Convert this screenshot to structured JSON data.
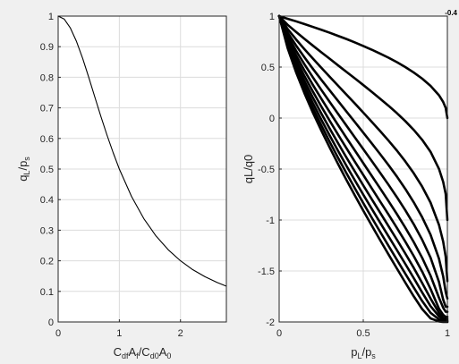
{
  "figure": {
    "background": "#f0f0f0",
    "axes_background": "#ffffff",
    "grid_color": "#dcdcdc",
    "line_color": "#000000"
  },
  "chart_data": [
    {
      "type": "line",
      "title": "",
      "xlabel": {
        "text": "CdfAf/Cd0A0",
        "parts": [
          [
            "C",
            ""
          ],
          [
            "df",
            "sub"
          ],
          [
            "A",
            ""
          ],
          [
            "f",
            "sub"
          ],
          [
            "/C",
            ""
          ],
          [
            "d0",
            "sub"
          ],
          [
            "A",
            ""
          ],
          [
            "0",
            "sub"
          ]
        ]
      },
      "ylabel": {
        "text": "qL/ps",
        "parts": [
          [
            "q",
            ""
          ],
          [
            "L",
            "sub"
          ],
          [
            "/p",
            ""
          ],
          [
            "s",
            "sub"
          ]
        ]
      },
      "xlim": [
        0,
        2.75
      ],
      "ylim": [
        0,
        1
      ],
      "xticks": [
        0,
        1,
        2
      ],
      "xtick_labels": [
        "0",
        "1",
        "2"
      ],
      "yticks": [
        0,
        0.1,
        0.2,
        0.3,
        0.4,
        0.5,
        0.6,
        0.7,
        0.8,
        0.9,
        1
      ],
      "ytick_labels": [
        "0",
        "0.1",
        "0.2",
        "0.3",
        "0.4",
        "0.5",
        "0.6",
        "0.7",
        "0.8",
        "0.9",
        "1"
      ],
      "grid": true,
      "series": [
        {
          "x": [
            0,
            0.1,
            0.2,
            0.3,
            0.4,
            0.5,
            0.6,
            0.7,
            0.8,
            0.9,
            1.0,
            1.2,
            1.4,
            1.6,
            1.8,
            2.0,
            2.2,
            2.4,
            2.6,
            2.75
          ],
          "y": [
            1.0,
            0.99,
            0.961,
            0.917,
            0.862,
            0.8,
            0.735,
            0.671,
            0.61,
            0.553,
            0.5,
            0.41,
            0.338,
            0.281,
            0.236,
            0.2,
            0.171,
            0.148,
            0.129,
            0.117
          ]
        }
      ]
    },
    {
      "type": "line",
      "title": "",
      "xlabel": {
        "text": "pL/ps",
        "parts": [
          [
            "p",
            ""
          ],
          [
            "L",
            "sub"
          ],
          [
            "/p",
            ""
          ],
          [
            "s",
            "sub"
          ]
        ]
      },
      "ylabel": {
        "text": "qL/q0",
        "parts": [
          [
            "qL/q0",
            ""
          ]
        ]
      },
      "xlim": [
        0,
        1
      ],
      "ylim": [
        -2,
        1
      ],
      "xticks": [
        0,
        0.5,
        1
      ],
      "xtick_labels": [
        "0",
        "0.5",
        "1"
      ],
      "yticks": [
        -2,
        -1.5,
        -1,
        -0.5,
        0,
        0.5,
        1
      ],
      "ytick_labels": [
        "-2",
        "-1.5",
        "-1",
        "-0.5",
        "0",
        "0.5",
        "1"
      ],
      "grid": true,
      "corner_label": "-0.4",
      "family": {
        "x": [
          0,
          0.05,
          0.1,
          0.15,
          0.2,
          0.25,
          0.3,
          0.35,
          0.4,
          0.45,
          0.5,
          0.55,
          0.6,
          0.65,
          0.7,
          0.75,
          0.8,
          0.85,
          0.9,
          0.95,
          0.975,
          0.99,
          1.0
        ],
        "curve_count": 11,
        "series": [
          {
            "y": [
              1.0,
              0.974,
              0.949,
              0.922,
              0.894,
              0.866,
              0.837,
              0.806,
              0.775,
              0.742,
              0.707,
              0.671,
              0.632,
              0.592,
              0.548,
              0.5,
              0.447,
              0.387,
              0.316,
              0.224,
              0.158,
              0.1,
              0.0
            ]
          },
          {
            "y": [
              1.0,
              0.915,
              0.845,
              0.777,
              0.711,
              0.646,
              0.582,
              0.517,
              0.453,
              0.389,
              0.324,
              0.258,
              0.19,
              0.121,
              0.048,
              -0.03,
              -0.116,
              -0.213,
              -0.331,
              -0.498,
              -0.625,
              -0.744,
              -1.0
            ]
          },
          {
            "y": [
              1.0,
              0.874,
              0.772,
              0.676,
              0.584,
              0.494,
              0.406,
              0.318,
              0.23,
              0.143,
              0.054,
              -0.036,
              -0.127,
              -0.221,
              -0.319,
              -0.425,
              -0.541,
              -0.672,
              -0.829,
              -1.047,
              -1.211,
              -1.359,
              -1.6
            ]
          },
          {
            "y": [
              1.0,
              0.84,
              0.713,
              0.596,
              0.484,
              0.377,
              0.272,
              0.168,
              0.064,
              -0.039,
              -0.143,
              -0.247,
              -0.353,
              -0.461,
              -0.574,
              -0.695,
              -0.826,
              -0.972,
              -1.144,
              -1.379,
              -1.552,
              -1.705,
              -1.77
            ]
          },
          {
            "y": [
              1.0,
              0.81,
              0.662,
              0.528,
              0.401,
              0.278,
              0.159,
              0.042,
              -0.074,
              -0.19,
              -0.305,
              -0.42,
              -0.536,
              -0.654,
              -0.776,
              -0.904,
              -1.041,
              -1.193,
              -1.369,
              -1.607,
              -1.78,
              -1.85,
              -1.85
            ]
          },
          {
            "y": [
              1.0,
              0.784,
              0.617,
              0.467,
              0.326,
              0.191,
              0.06,
              -0.068,
              -0.194,
              -0.318,
              -0.442,
              -0.566,
              -0.689,
              -0.814,
              -0.942,
              -1.075,
              -1.216,
              -1.37,
              -1.546,
              -1.762,
              -1.86,
              -1.9,
              -1.9
            ]
          },
          {
            "y": [
              1.0,
              0.761,
              0.577,
              0.413,
              0.261,
              0.115,
              -0.025,
              -0.162,
              -0.296,
              -0.428,
              -0.558,
              -0.688,
              -0.817,
              -0.946,
              -1.077,
              -1.212,
              -1.353,
              -1.505,
              -1.676,
              -1.869,
              -1.93,
              -1.95,
              -1.95
            ]
          },
          {
            "y": [
              1.0,
              0.74,
              0.541,
              0.365,
              0.202,
              0.047,
              -0.102,
              -0.246,
              -0.387,
              -0.524,
              -0.66,
              -0.794,
              -0.927,
              -1.06,
              -1.193,
              -1.329,
              -1.469,
              -1.617,
              -1.77,
              -1.91,
              -1.96,
              -1.97,
              -1.97
            ]
          },
          {
            "y": [
              1.0,
              0.721,
              0.509,
              0.321,
              0.149,
              -0.014,
              -0.17,
              -0.321,
              -0.468,
              -0.611,
              -0.751,
              -0.889,
              -1.025,
              -1.16,
              -1.295,
              -1.431,
              -1.569,
              -1.71,
              -1.845,
              -1.945,
              -1.975,
              -1.985,
              -1.985
            ]
          },
          {
            "y": [
              1.0,
              0.704,
              0.48,
              0.282,
              0.1,
              -0.069,
              -0.232,
              -0.389,
              -0.541,
              -0.689,
              -0.834,
              -0.976,
              -1.115,
              -1.253,
              -1.39,
              -1.527,
              -1.662,
              -1.794,
              -1.91,
              -1.975,
              -1.99,
              -1.995,
              -1.995
            ]
          },
          {
            "y": [
              1.0,
              0.688,
              0.452,
              0.245,
              0.055,
              -0.12,
              -0.288,
              -0.45,
              -0.607,
              -0.759,
              -0.908,
              -1.053,
              -1.196,
              -1.337,
              -1.476,
              -1.614,
              -1.748,
              -1.873,
              -1.965,
              -1.995,
              -2.0,
              -2.0,
              -2.0
            ]
          }
        ]
      }
    }
  ]
}
